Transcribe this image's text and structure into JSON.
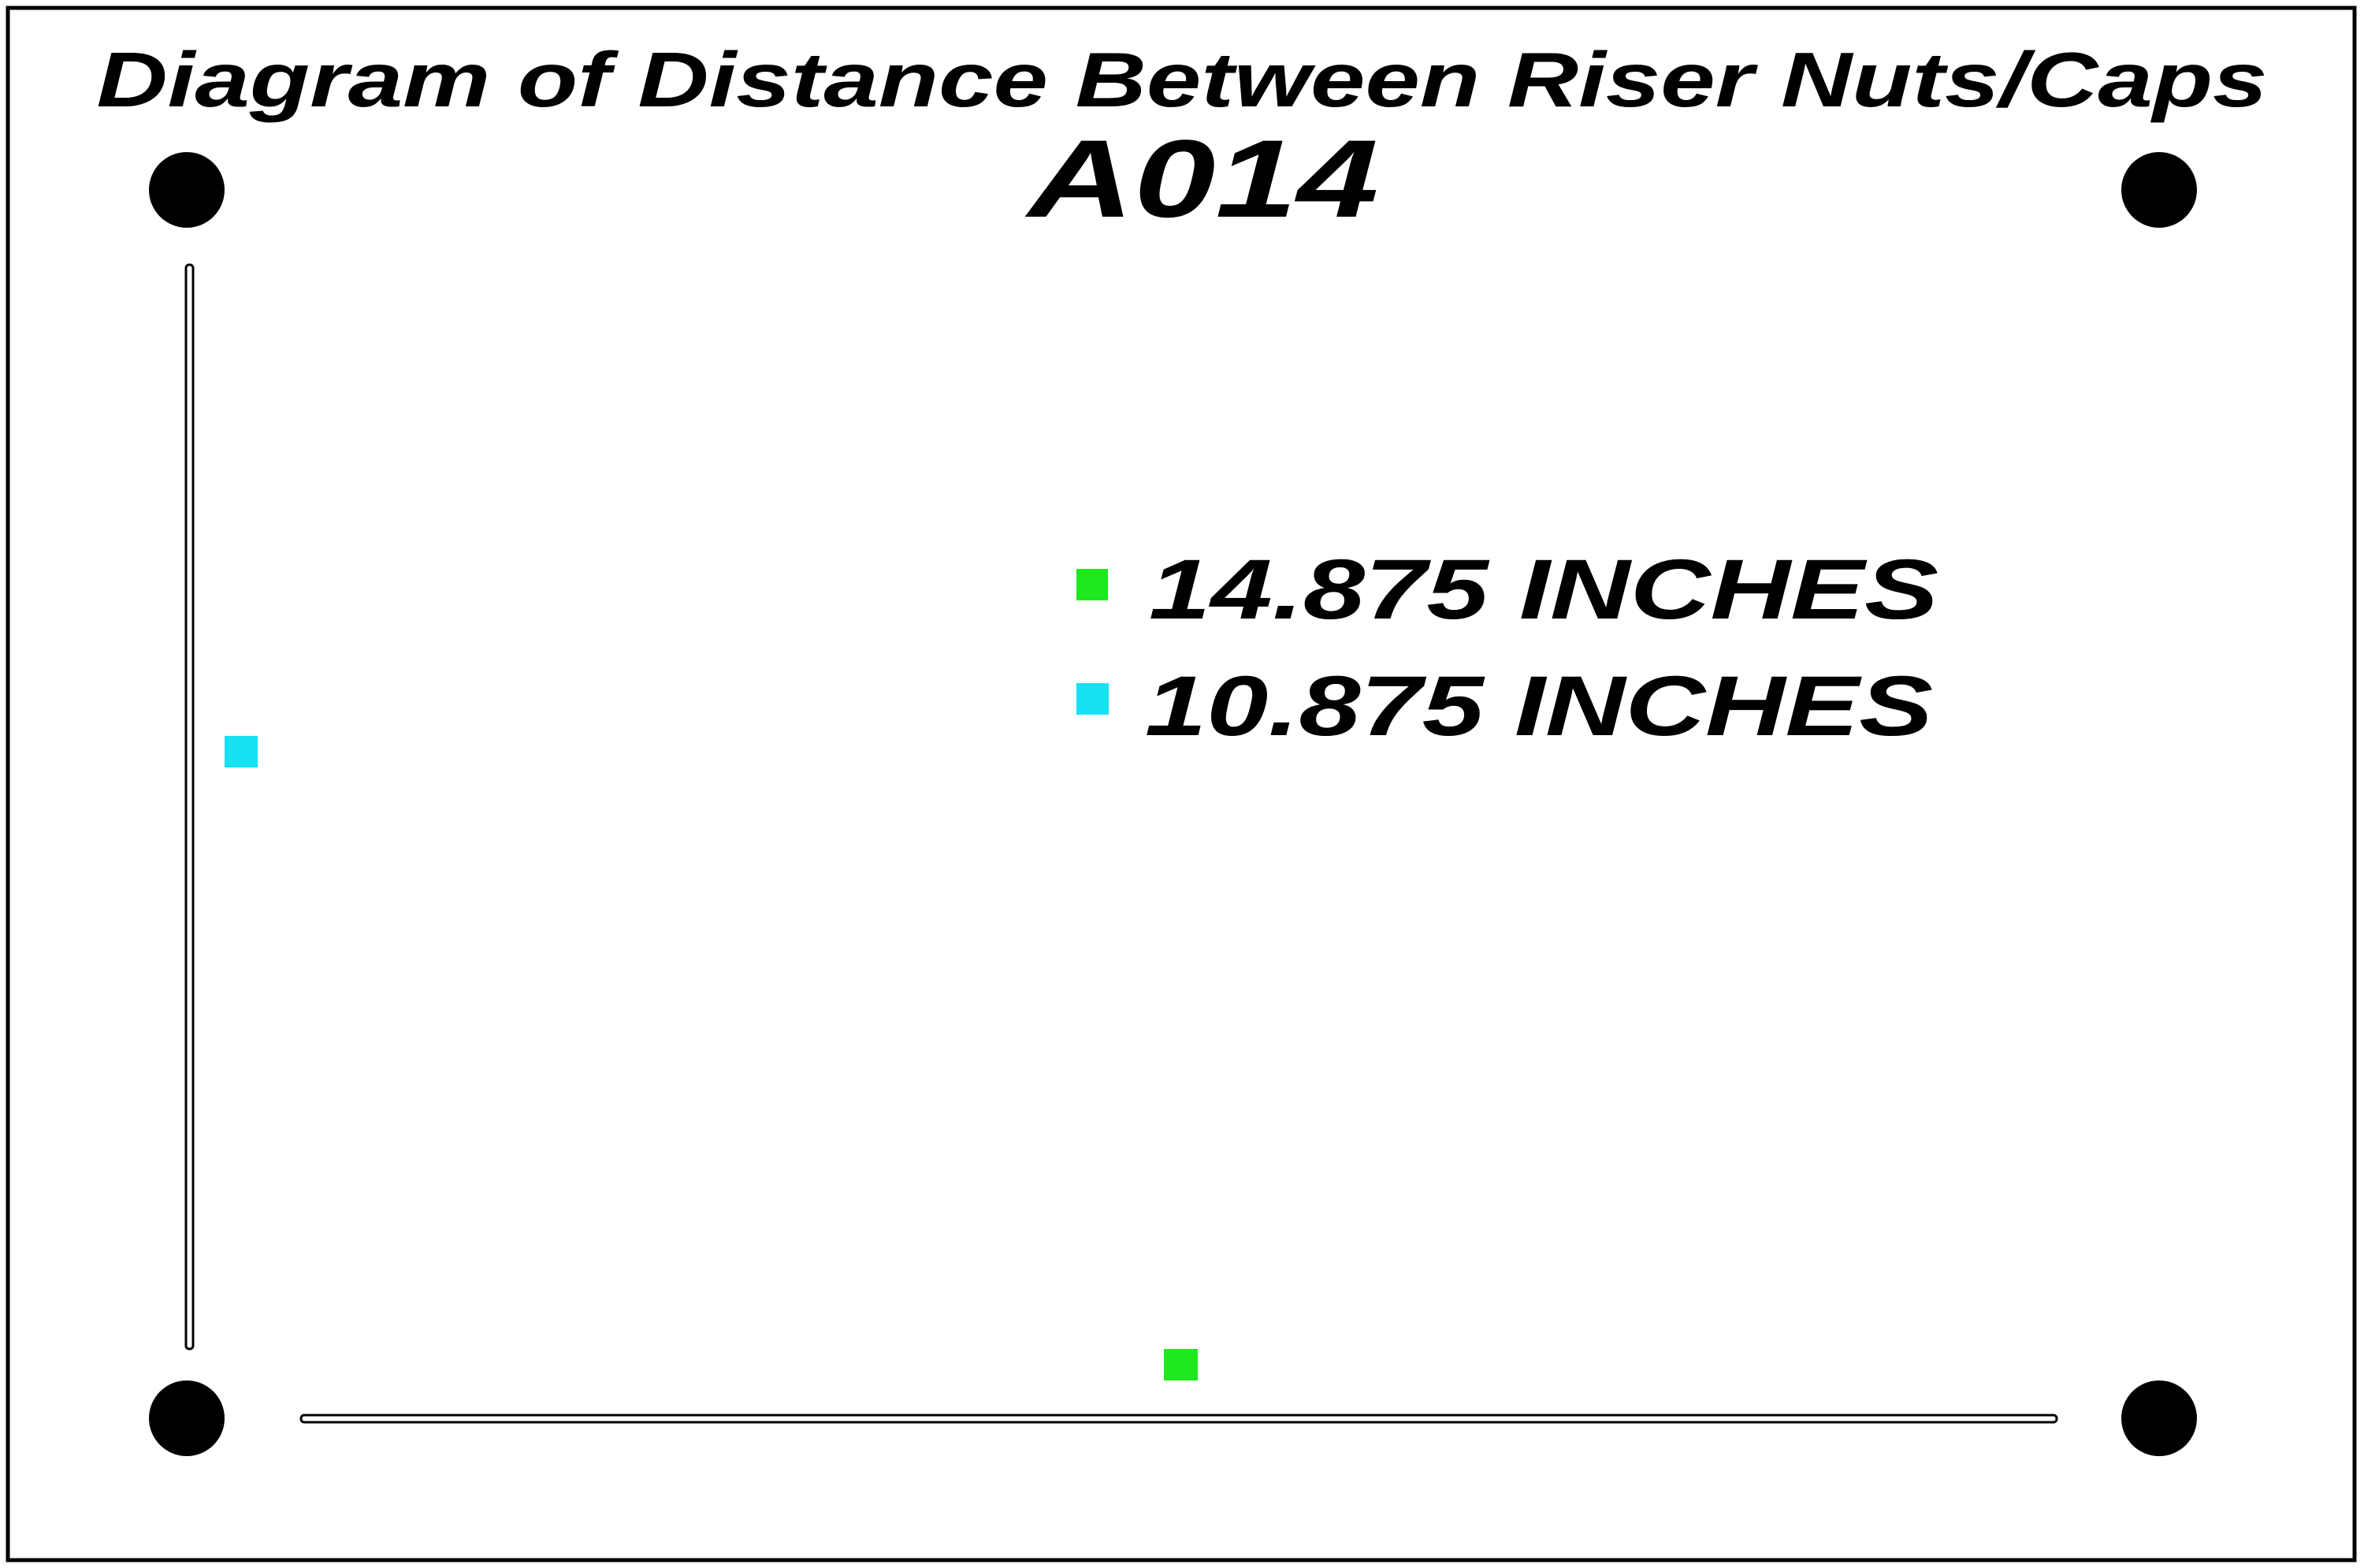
{
  "title": "Diagram of Distance Between Riser Nuts/Caps",
  "model": "A014",
  "legend": [
    {
      "label": "14.875 INCHES",
      "color": "#1ee81e"
    },
    {
      "label": "10.875 INCHES",
      "color": "#16e2f2"
    }
  ],
  "colors": {
    "nut": "#000000",
    "border": "#000000",
    "background": "#ffffff"
  }
}
